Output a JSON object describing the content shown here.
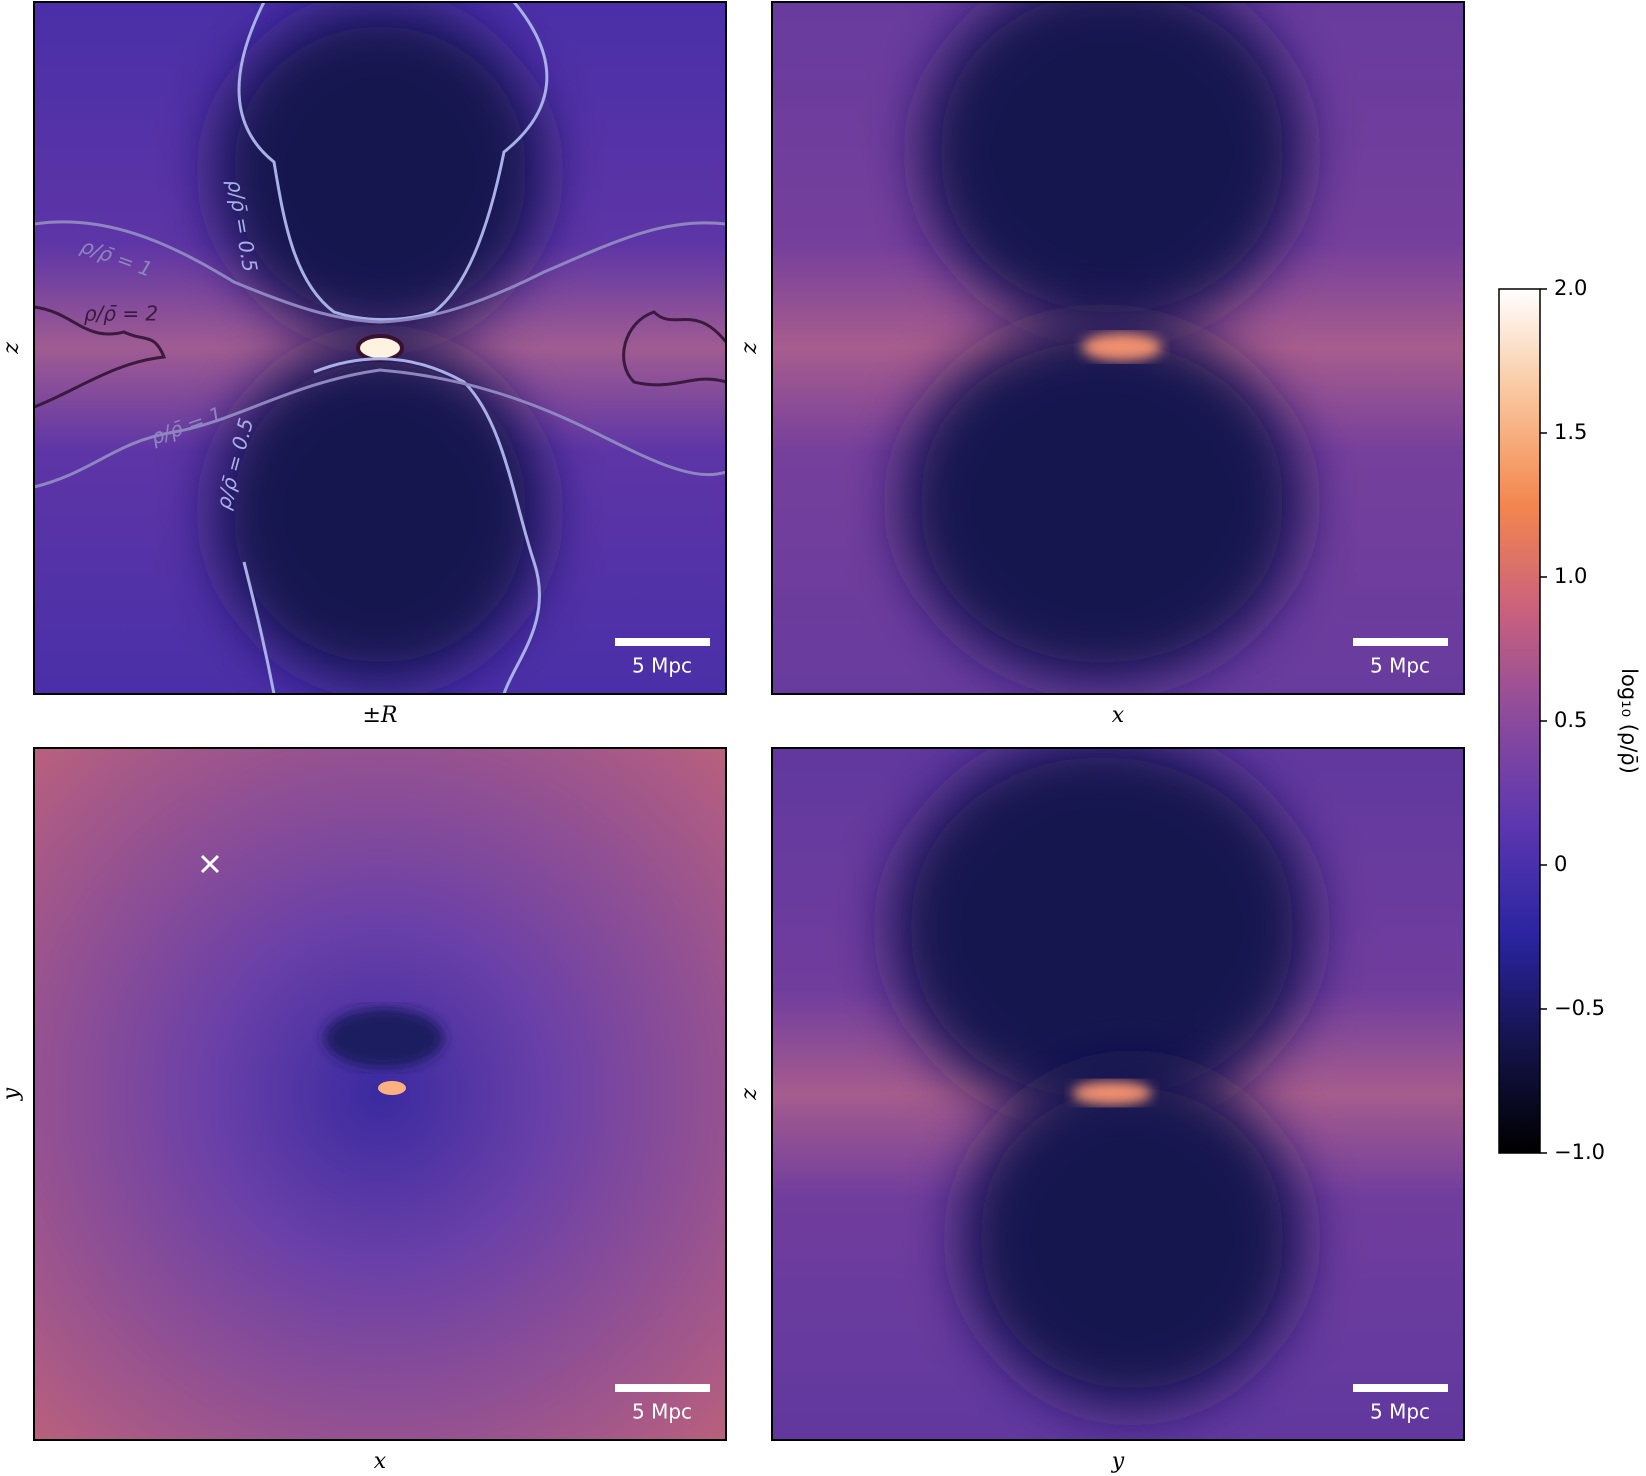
{
  "chart_data": {
    "type": "heatmap",
    "panels": [
      {
        "xlabel": "±R",
        "ylabel": "z",
        "scalebar": "5 Mpc",
        "annotations": [
          "ρ/ρ̄ = 0.5",
          "ρ/ρ̄ = 1",
          "ρ/ρ̄ = 2",
          "ρ/ρ̄ = 1",
          "ρ/ρ̄ = 0.5"
        ]
      },
      {
        "xlabel": "x",
        "ylabel": "z",
        "scalebar": "5 Mpc"
      },
      {
        "xlabel": "x",
        "ylabel": "y",
        "scalebar": "5 Mpc"
      },
      {
        "xlabel": "y",
        "ylabel": "z",
        "scalebar": "5 Mpc"
      }
    ],
    "colorbar": {
      "label": "log₁₀ (ρ/ρ̄)",
      "lim": [
        -1,
        2
      ],
      "ticks": [
        {
          "value": -1,
          "label": "−1.0"
        },
        {
          "value": -0.5,
          "label": "−0.5"
        },
        0,
        0.5,
        {
          "value": 1,
          "label": "1.0"
        },
        1.5,
        {
          "value": 2,
          "label": "2.0"
        }
      ],
      "colormap": [
        "#000000",
        "#14134a",
        "#2a24a0",
        "#5a36b0",
        "#8a4a9e",
        "#c8607e",
        "#f4864e",
        "#f9c49a",
        "#ffffff"
      ]
    }
  }
}
